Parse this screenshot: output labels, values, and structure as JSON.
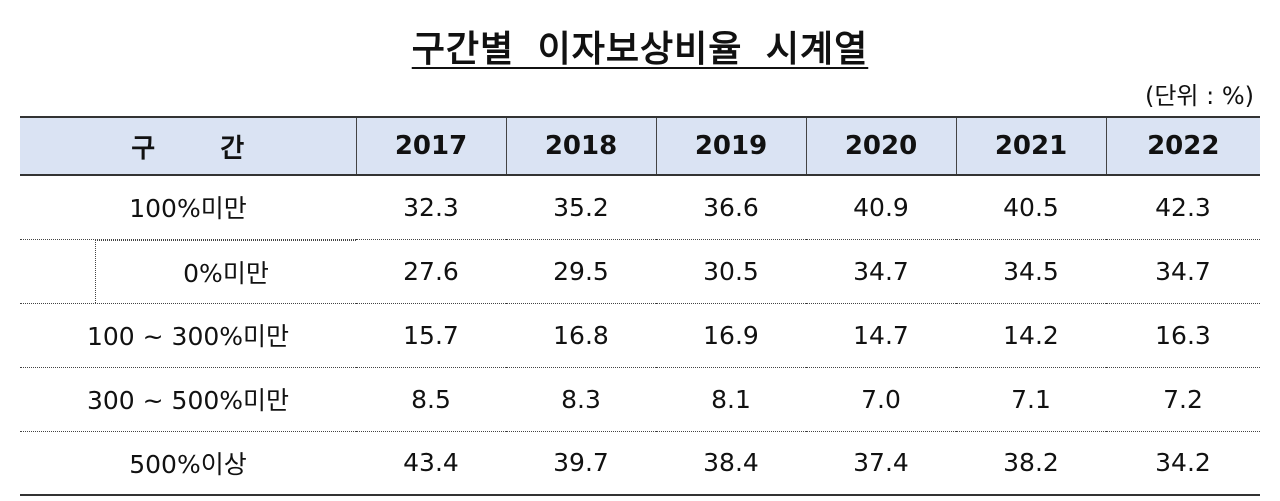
{
  "title": "구간별 이자보상비율 시계열",
  "unit": "(단위 : %)",
  "header": {
    "category": "구 간",
    "years": [
      "2017",
      "2018",
      "2019",
      "2020",
      "2021",
      "2022"
    ]
  },
  "rows": [
    {
      "label": "100%미만",
      "values": [
        "32.3",
        "35.2",
        "36.6",
        "40.9",
        "40.5",
        "42.3"
      ]
    },
    {
      "label": "0%미만",
      "values": [
        "27.6",
        "29.5",
        "30.5",
        "34.7",
        "34.5",
        "34.7"
      ]
    },
    {
      "label": "100 ~ 300%미만",
      "values": [
        "15.7",
        "16.8",
        "16.9",
        "14.7",
        "14.2",
        "16.3"
      ]
    },
    {
      "label": "300 ~ 500%미만",
      "values": [
        "8.5",
        "8.3",
        "8.1",
        "7.0",
        "7.1",
        "7.2"
      ]
    },
    {
      "label": "500%이상",
      "values": [
        "43.4",
        "39.7",
        "38.4",
        "37.4",
        "38.2",
        "34.2"
      ]
    }
  ]
}
